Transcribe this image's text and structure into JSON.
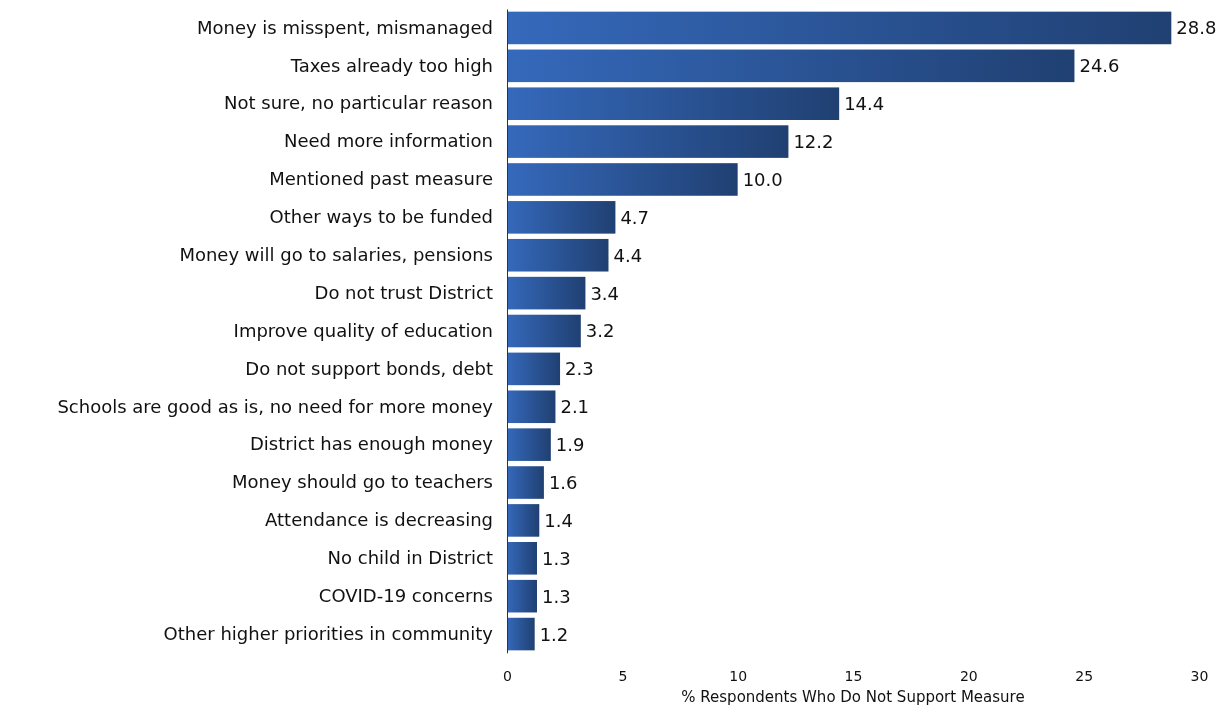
{
  "chart_data": {
    "type": "bar",
    "orientation": "horizontal",
    "xlabel": "% Respondents Who Do Not Support Measure",
    "categories": [
      "Money is misspent, mismanaged",
      "Taxes already too high",
      "Not sure, no particular reason",
      "Need more information",
      "Mentioned past measure",
      "Other ways to be funded",
      "Money will go to salaries, pensions",
      "Do not trust District",
      "Improve quality of education",
      "Do not support bonds, debt",
      "Schools are good as is, no need for more money",
      "District has enough money",
      "Money should go to teachers",
      "Attendance is decreasing",
      "No child in District",
      "COVID-19 concerns",
      "Other higher priorities in community"
    ],
    "values": [
      28.8,
      24.6,
      14.4,
      12.2,
      10.0,
      4.7,
      4.4,
      3.4,
      3.2,
      2.3,
      2.1,
      1.9,
      1.6,
      1.4,
      1.3,
      1.3,
      1.2
    ],
    "value_labels": [
      "28.8",
      "24.6",
      "14.4",
      "12.2",
      "10.0",
      "4.7",
      "4.4",
      "3.4",
      "3.2",
      "2.3",
      "2.1",
      "1.9",
      "1.6",
      "1.4",
      "1.3",
      "1.3",
      "1.2"
    ],
    "color": "#2b5597",
    "xlim": [
      0,
      30
    ],
    "xticks": [
      0,
      5,
      10,
      15,
      20,
      25,
      30
    ],
    "grid": false
  }
}
